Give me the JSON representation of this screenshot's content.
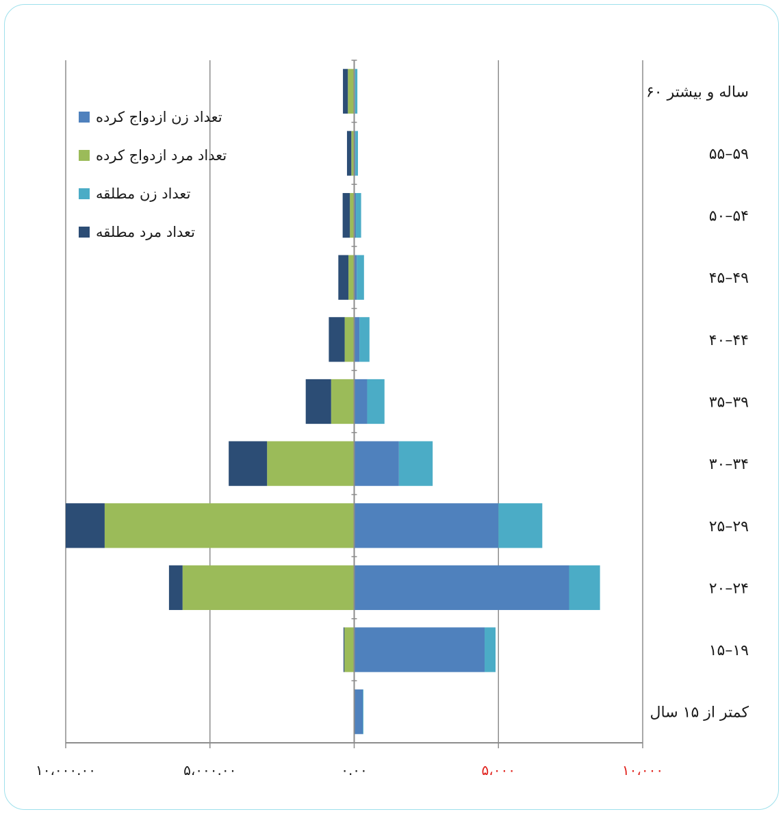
{
  "chart_data": {
    "type": "bar",
    "orientation": "horizontal-diverging-stacked",
    "categories": [
      "کمتر از ۱۵ سال",
      "۱۵–۱۹",
      "۲۰–۲۴",
      "۲۵–۲۹",
      "۳۰–۳۴",
      "۳۵–۳۹",
      "۴۰–۴۴",
      "۴۵–۴۹",
      "۵۰–۵۴",
      "۵۵–۵۹",
      "۶۰ ساله و بیشتر"
    ],
    "series": [
      {
        "name": "تعداد زن ازدواج کرده",
        "side": "right",
        "color": "#4f81bd",
        "values": [
          300,
          4520,
          7450,
          5000,
          1550,
          450,
          180,
          90,
          60,
          40,
          30
        ]
      },
      {
        "name": "تعداد زن مطلقه",
        "side": "right",
        "color": "#4bacc6",
        "values": [
          20,
          380,
          1070,
          1520,
          1170,
          600,
          350,
          250,
          180,
          90,
          80
        ]
      },
      {
        "name": "تعداد مرد ازدواج کرده",
        "side": "left",
        "color": "#9bbb59",
        "values": [
          20,
          340,
          5950,
          8650,
          3020,
          800,
          330,
          200,
          150,
          100,
          220
        ]
      },
      {
        "name": "تعداد مرد مطلقه",
        "side": "left",
        "color": "#2c4d75",
        "values": [
          0,
          30,
          470,
          1350,
          1330,
          880,
          550,
          350,
          250,
          150,
          170
        ]
      }
    ],
    "xlim": [
      -10000,
      10000
    ],
    "xticks": [
      -10000,
      -5000,
      0,
      5000,
      10000
    ],
    "xtick_labels": [
      "۱۰،۰۰۰.۰۰",
      "۵،۰۰۰.۰۰",
      "۰.۰۰",
      "۵،۰۰۰",
      "۱۰،۰۰۰"
    ],
    "xtick_colors": [
      "#1a1a1a",
      "#1a1a1a",
      "#1a1a1a",
      "#e0201b",
      "#e0201b"
    ],
    "grid": "vertical",
    "legend_position": "top-left"
  }
}
